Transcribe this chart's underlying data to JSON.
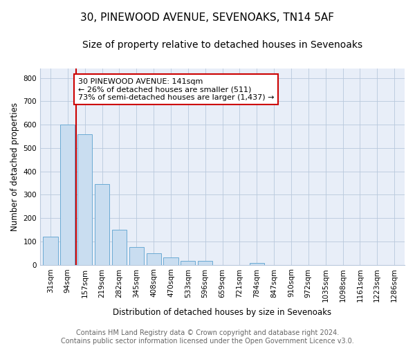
{
  "title": "30, PINEWOOD AVENUE, SEVENOAKS, TN14 5AF",
  "subtitle": "Size of property relative to detached houses in Sevenoaks",
  "xlabel": "Distribution of detached houses by size in Sevenoaks",
  "ylabel": "Number of detached properties",
  "bar_labels": [
    "31sqm",
    "94sqm",
    "157sqm",
    "219sqm",
    "282sqm",
    "345sqm",
    "408sqm",
    "470sqm",
    "533sqm",
    "596sqm",
    "659sqm",
    "721sqm",
    "784sqm",
    "847sqm",
    "910sqm",
    "972sqm",
    "1035sqm",
    "1098sqm",
    "1161sqm",
    "1223sqm",
    "1286sqm"
  ],
  "bar_values": [
    120,
    600,
    560,
    345,
    150,
    75,
    50,
    30,
    15,
    15,
    0,
    0,
    8,
    0,
    0,
    0,
    0,
    0,
    0,
    0,
    0
  ],
  "bar_color": "#c9ddf0",
  "bar_edge_color": "#6aaad4",
  "vline_color": "#cc0000",
  "annotation_text": "30 PINEWOOD AVENUE: 141sqm\n← 26% of detached houses are smaller (511)\n73% of semi-detached houses are larger (1,437) →",
  "annotation_box_color": "#cc0000",
  "ylim": [
    0,
    840
  ],
  "yticks": [
    0,
    100,
    200,
    300,
    400,
    500,
    600,
    700,
    800
  ],
  "footer_text": "Contains HM Land Registry data © Crown copyright and database right 2024.\nContains public sector information licensed under the Open Government Licence v3.0.",
  "bg_color": "#ffffff",
  "plot_bg_color": "#e8eef8",
  "grid_color": "#b8c8dc",
  "title_fontsize": 11,
  "subtitle_fontsize": 10,
  "axis_label_fontsize": 8.5,
  "tick_fontsize": 7.5,
  "annotation_fontsize": 8,
  "footer_fontsize": 7
}
